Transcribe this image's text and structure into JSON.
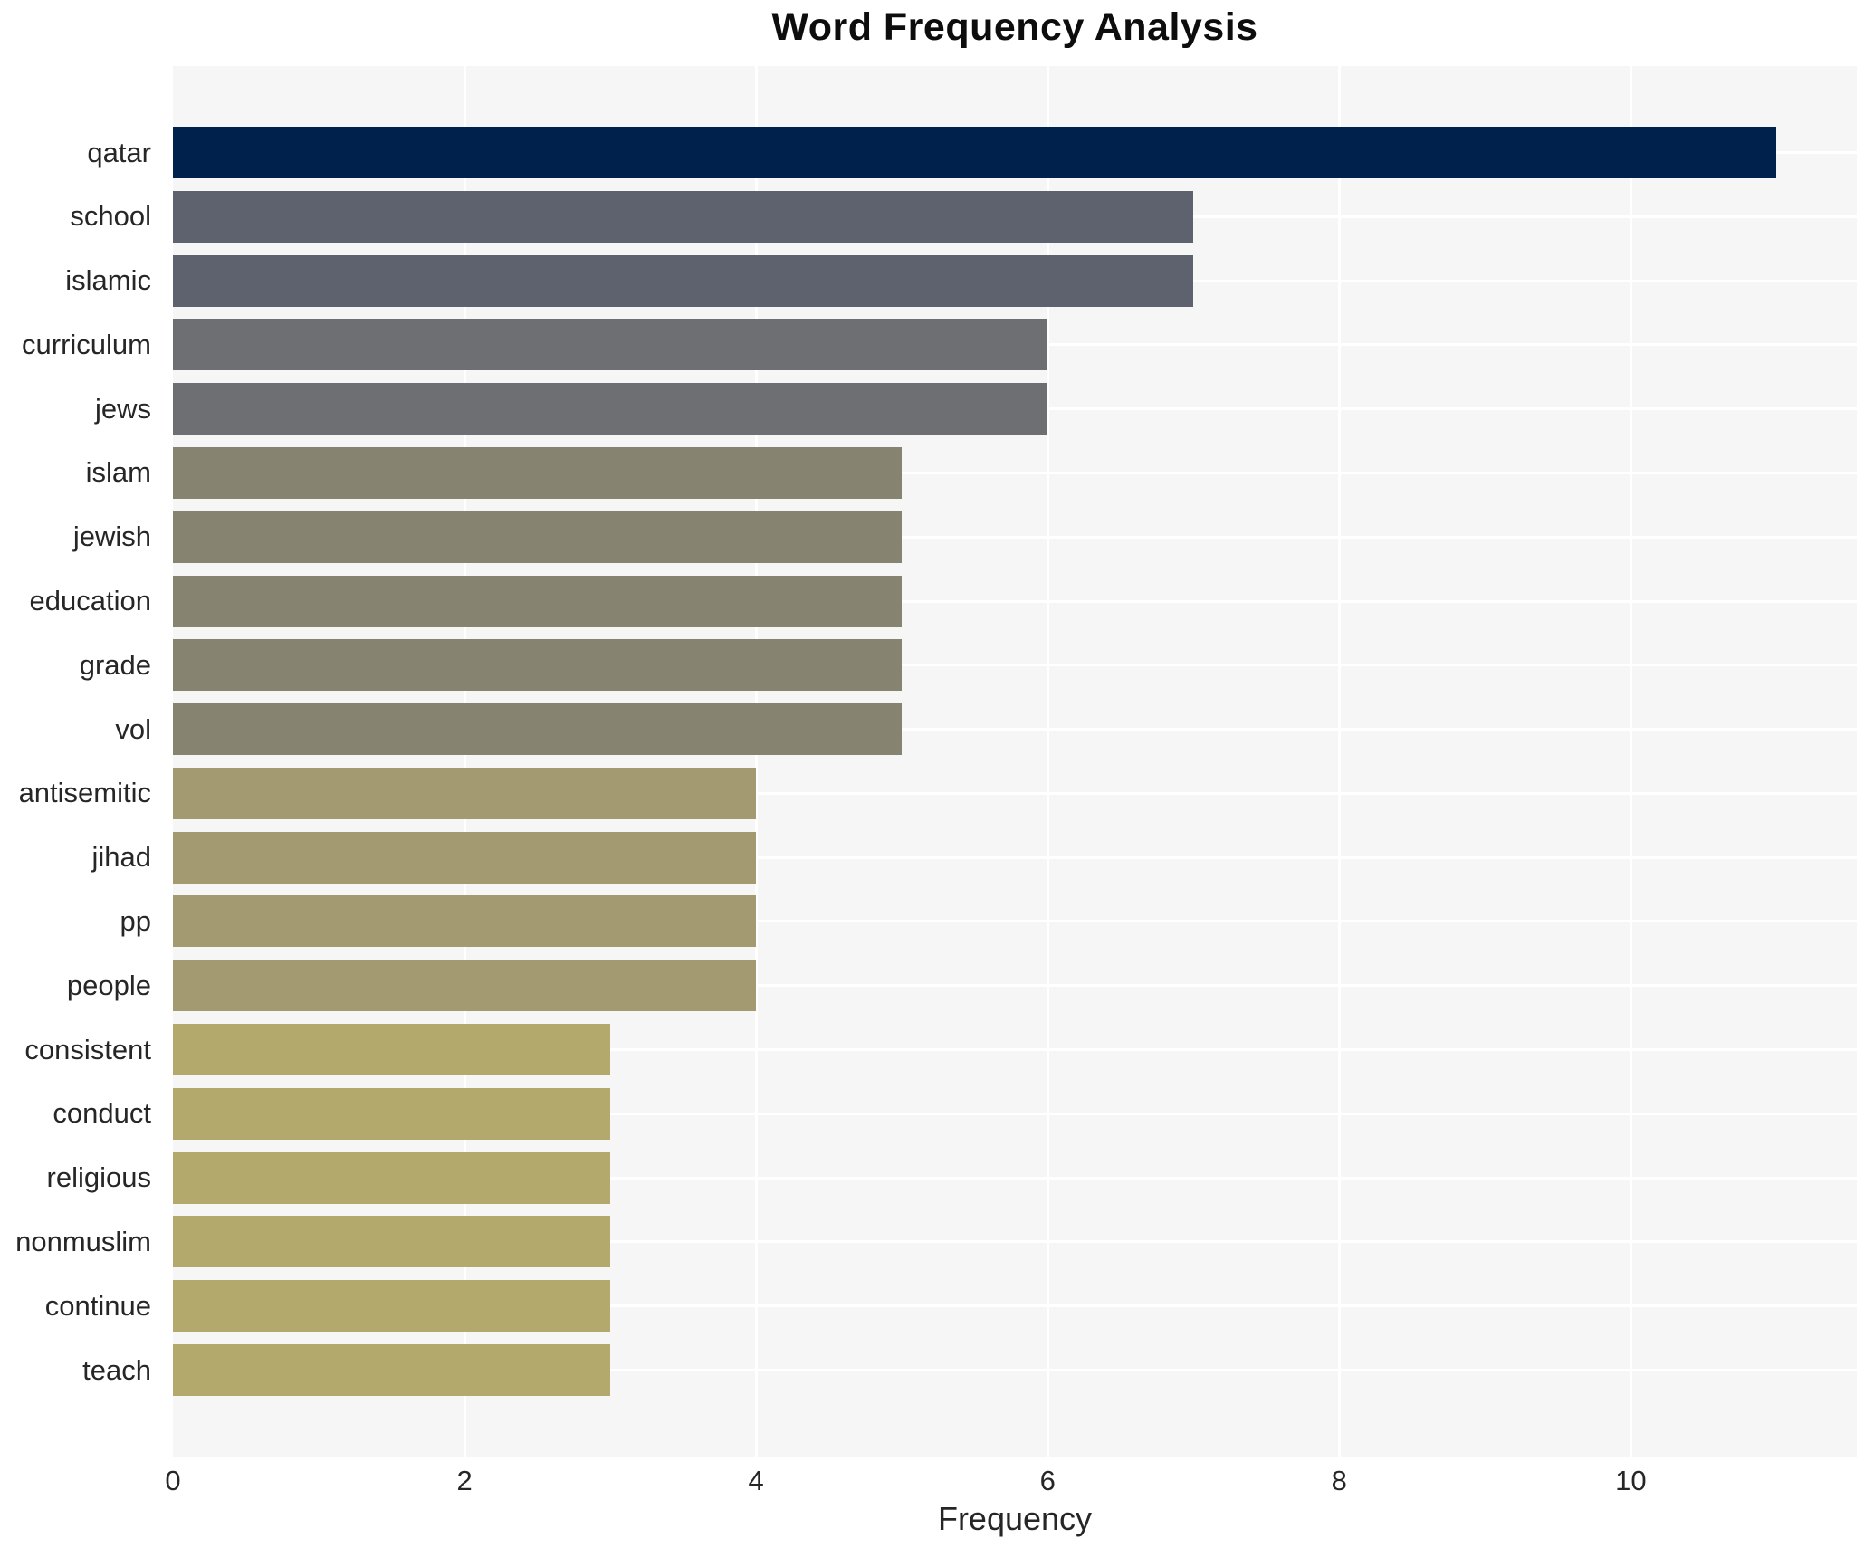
{
  "title": "Word Frequency Analysis",
  "chart_data": {
    "type": "bar",
    "orientation": "horizontal",
    "title": "Word Frequency Analysis",
    "xlabel": "Frequency",
    "ylabel": "",
    "categories": [
      "qatar",
      "school",
      "islamic",
      "curriculum",
      "jews",
      "islam",
      "jewish",
      "education",
      "grade",
      "vol",
      "antisemitic",
      "jihad",
      "pp",
      "people",
      "consistent",
      "conduct",
      "religious",
      "nonmuslim",
      "continue",
      "teach"
    ],
    "values": [
      11,
      7,
      7,
      6,
      6,
      5,
      5,
      5,
      5,
      5,
      4,
      4,
      4,
      4,
      3,
      3,
      3,
      3,
      3,
      3
    ],
    "xticks": [
      0,
      2,
      4,
      6,
      8,
      10
    ],
    "xlim": [
      0,
      11.55
    ],
    "grid": true,
    "legend": false,
    "colors": {
      "plot_background": "#f6f6f7",
      "grid_line": "#ffffff",
      "text": "#262626",
      "title_text": "#0d0d0d",
      "bar_by_value": {
        "11": "#01214d",
        "7": "#5e616e",
        "6": "#6e6f73",
        "5": "#868471",
        "4": "#a39a71",
        "3": "#b3a96c"
      }
    }
  }
}
